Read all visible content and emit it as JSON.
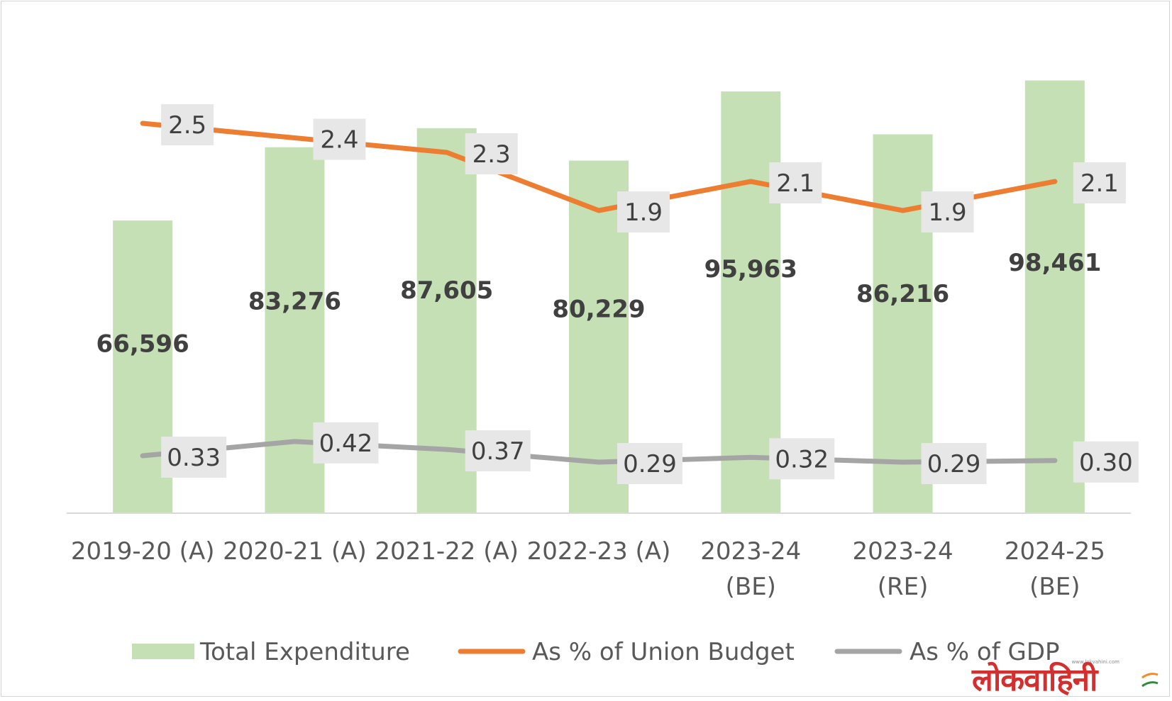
{
  "chart_data": {
    "type": "bar",
    "categories": [
      "2019-20 (A)",
      "2020-21 (A)",
      "2021-22 (A)",
      "2022-23 (A)",
      "2023-24 (BE)",
      "2023-24 (RE)",
      "2024-25 (BE)"
    ],
    "category_lines": [
      [
        "2019-20 (A)"
      ],
      [
        "2020-21 (A)"
      ],
      [
        "2021-22 (A)"
      ],
      [
        "2022-23 (A)"
      ],
      [
        "2023-24",
        "(BE)"
      ],
      [
        "2023-24",
        "(RE)"
      ],
      [
        "2024-25",
        "(BE)"
      ]
    ],
    "series": [
      {
        "name": "Total Expenditure",
        "type": "bar",
        "color": "#c5e0b4",
        "values": [
          66596,
          83276,
          87605,
          80229,
          95963,
          86216,
          98461
        ],
        "labels": [
          "66,596",
          "83,276",
          "87,605",
          "80,229",
          "95,963",
          "86,216",
          "98,461"
        ]
      },
      {
        "name": "As % of Union Budget",
        "type": "line",
        "color": "#ed7d31",
        "values": [
          2.5,
          2.4,
          2.3,
          1.9,
          2.1,
          1.9,
          2.1
        ],
        "labels": [
          "2.5",
          "2.4",
          "2.3",
          "1.9",
          "2.1",
          "1.9",
          "2.1"
        ]
      },
      {
        "name": "As % of GDP",
        "type": "line",
        "color": "#a5a5a5",
        "values": [
          0.33,
          0.42,
          0.37,
          0.29,
          0.32,
          0.29,
          0.3
        ],
        "labels": [
          "0.33",
          "0.42",
          "0.37",
          "0.29",
          "0.32",
          "0.29",
          "0.30"
        ]
      }
    ],
    "title": "",
    "xlabel": "",
    "ylabel": "",
    "ylim": [
      0,
      110000
    ],
    "grid": false,
    "legend_position": "bottom"
  },
  "watermark": {
    "site": "www.lokvahini.com",
    "brand": "लोकवाहिनी"
  }
}
